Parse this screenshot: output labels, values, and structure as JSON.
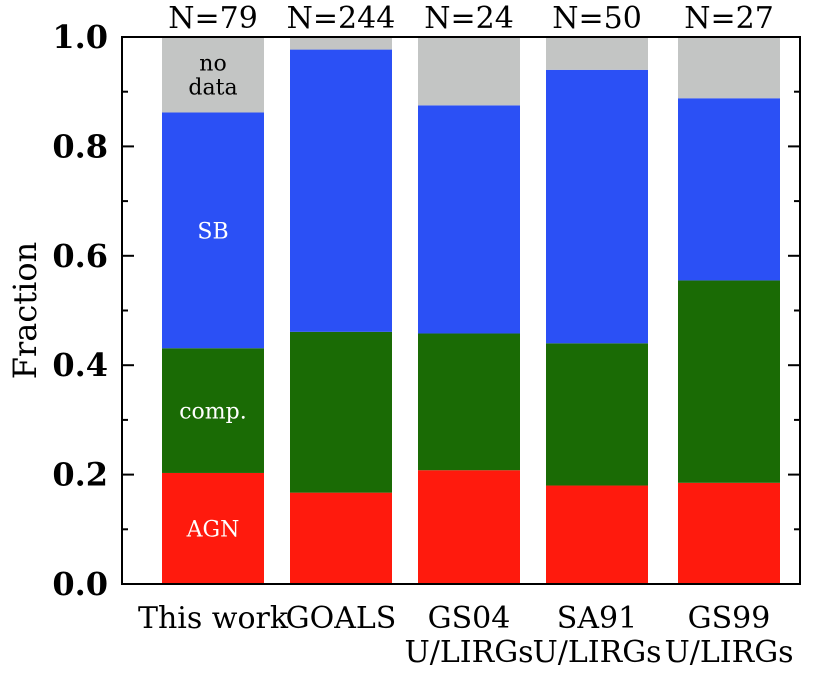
{
  "chart_data": {
    "type": "bar",
    "stacked": true,
    "ylabel": "Fraction",
    "ylim": [
      0.0,
      1.0
    ],
    "yticks": [
      "0.0",
      "0.2",
      "0.4",
      "0.6",
      "0.8",
      "1.0"
    ],
    "grid": false,
    "categories": [
      [
        "This work"
      ],
      [
        "GOALS"
      ],
      [
        "GS04",
        "U/LIRGs"
      ],
      [
        "SA91",
        "U/LIRGs"
      ],
      [
        "GS99",
        "U/LIRGs"
      ]
    ],
    "top_labels": [
      "N=79",
      "N=244",
      "N=24",
      "N=50",
      "N=27"
    ],
    "series": [
      {
        "name": "AGN",
        "color": "#ff1a0d",
        "label_color": "#ffffff",
        "values": [
          0.203,
          0.167,
          0.208,
          0.18,
          0.185
        ]
      },
      {
        "name": "comp.",
        "color": "#1a6b05",
        "label_color": "#ffffff",
        "values": [
          0.228,
          0.294,
          0.25,
          0.26,
          0.37
        ]
      },
      {
        "name": "SB",
        "color": "#2b50f5",
        "label_color": "#ffffff",
        "values": [
          0.431,
          0.516,
          0.417,
          0.5,
          0.333
        ]
      },
      {
        "name": "no data",
        "color": "#c3c5c4",
        "label_color": "#000000",
        "values": [
          0.138,
          0.023,
          0.125,
          0.06,
          0.112
        ]
      }
    ],
    "segment_labels": [
      {
        "series": 0,
        "bar": 0,
        "lines": [
          "AGN"
        ]
      },
      {
        "series": 1,
        "bar": 0,
        "lines": [
          "comp."
        ]
      },
      {
        "series": 2,
        "bar": 0,
        "lines": [
          "SB"
        ]
      },
      {
        "series": 3,
        "bar": 0,
        "lines": [
          "no",
          "data"
        ]
      }
    ]
  }
}
